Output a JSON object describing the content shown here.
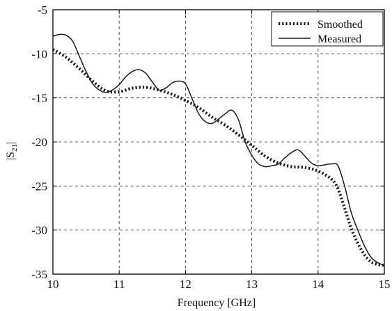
{
  "chart_data": {
    "type": "line",
    "title": "",
    "xlabel": "Frequency [GHz]",
    "ylabel": "|S21|",
    "ylabel_main": "|S",
    "ylabel_sub": "21",
    "ylabel_tail": "|",
    "xlim": [
      10,
      15
    ],
    "ylim": [
      -35,
      -5
    ],
    "xticks": [
      10,
      11,
      12,
      13,
      14,
      15
    ],
    "yticks": [
      -5,
      -10,
      -15,
      -20,
      -25,
      -30,
      -35
    ],
    "xtick_labels": [
      "10",
      "11",
      "12",
      "13",
      "14",
      "15"
    ],
    "ytick_labels": [
      "-5",
      "-10",
      "-15",
      "-20",
      "-25",
      "-30",
      "-35"
    ],
    "grid": true,
    "legend_position": "top-right",
    "series": [
      {
        "name": "Smoothed",
        "style": "dotted",
        "color": "#1a1a1a",
        "x": [
          10.0,
          10.2,
          10.4,
          10.6,
          10.8,
          11.0,
          11.2,
          11.4,
          11.6,
          11.8,
          12.0,
          12.2,
          12.4,
          12.6,
          12.8,
          13.0,
          13.2,
          13.4,
          13.6,
          13.8,
          14.0,
          14.2,
          14.3,
          14.4,
          14.5,
          14.6,
          14.7,
          14.8,
          14.9,
          15.0
        ],
        "y": [
          -9.5,
          -10.4,
          -11.7,
          -13.1,
          -14.2,
          -14.3,
          -13.9,
          -13.8,
          -14.1,
          -14.6,
          -15.3,
          -16.1,
          -17.2,
          -18.1,
          -19.2,
          -20.4,
          -21.6,
          -22.4,
          -22.8,
          -22.9,
          -23.3,
          -24.2,
          -25.3,
          -27.5,
          -29.8,
          -31.5,
          -32.8,
          -33.6,
          -33.9,
          -34.0
        ]
      },
      {
        "name": "Measured",
        "style": "solid",
        "color": "#1a1a1a",
        "x": [
          10.0,
          10.1,
          10.2,
          10.3,
          10.4,
          10.5,
          10.6,
          10.7,
          10.8,
          10.9,
          11.0,
          11.1,
          11.2,
          11.3,
          11.4,
          11.5,
          11.6,
          11.7,
          11.8,
          11.9,
          12.0,
          12.1,
          12.2,
          12.3,
          12.4,
          12.5,
          12.6,
          12.7,
          12.8,
          12.9,
          13.0,
          13.1,
          13.2,
          13.3,
          13.4,
          13.5,
          13.6,
          13.7,
          13.8,
          13.9,
          14.0,
          14.1,
          14.2,
          14.3,
          14.4,
          14.5,
          14.6,
          14.7,
          14.8,
          14.9,
          15.0
        ],
        "y": [
          -8.0,
          -7.8,
          -7.9,
          -8.6,
          -10.3,
          -12.0,
          -13.4,
          -14.1,
          -14.4,
          -14.1,
          -13.5,
          -12.6,
          -12.0,
          -11.8,
          -12.2,
          -13.2,
          -14.1,
          -13.9,
          -13.3,
          -13.1,
          -13.4,
          -15.1,
          -16.8,
          -17.7,
          -17.9,
          -17.4,
          -16.8,
          -16.4,
          -17.5,
          -20.0,
          -21.5,
          -22.5,
          -22.8,
          -22.7,
          -22.5,
          -21.8,
          -21.2,
          -20.9,
          -21.6,
          -22.4,
          -22.7,
          -22.6,
          -22.5,
          -22.7,
          -25.0,
          -28.0,
          -30.0,
          -31.8,
          -33.1,
          -33.7,
          -34.0
        ]
      }
    ]
  }
}
